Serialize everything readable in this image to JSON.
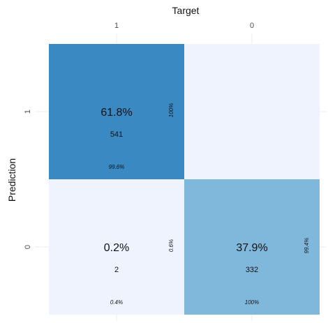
{
  "chart_data": {
    "type": "heatmap",
    "title": "",
    "xlabel": "Target",
    "ylabel": "Prediction",
    "x_categories": [
      "1",
      "0"
    ],
    "y_categories": [
      "1",
      "0"
    ],
    "cells": [
      {
        "target": "1",
        "prediction": "1",
        "percent": "61.8%",
        "count": "541",
        "col_pct": "99.6%",
        "row_pct": "100%",
        "color": "#3a89c3"
      },
      {
        "target": "0",
        "prediction": "1",
        "percent": "",
        "count": "",
        "col_pct": "",
        "row_pct": "",
        "color": "#eef3fe"
      },
      {
        "target": "1",
        "prediction": "0",
        "percent": "0.2%",
        "count": "2",
        "col_pct": "0.4%",
        "row_pct": "0.6%",
        "color": "#eef3fe"
      },
      {
        "target": "0",
        "prediction": "0",
        "percent": "37.9%",
        "count": "332",
        "col_pct": "100%",
        "row_pct": "99.4%",
        "color": "#80b8dc"
      }
    ]
  }
}
